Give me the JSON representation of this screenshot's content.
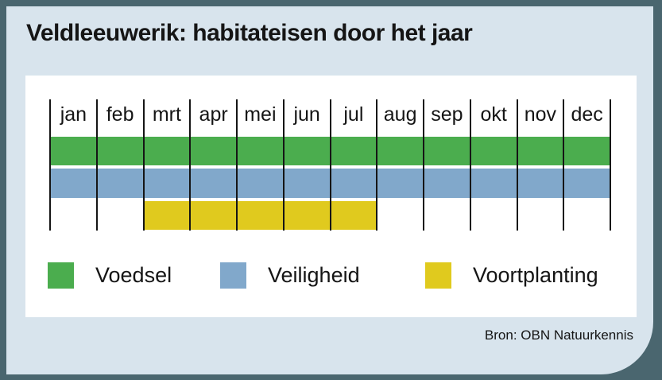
{
  "title": "Veldleeuwerik: habitateisen door het jaar",
  "source": "Bron: OBN Natuurkennis",
  "colors": {
    "frame_background": "#4a666f",
    "card_background": "#d8e4ed",
    "panel_background": "#ffffff",
    "axis_line": "#151515",
    "text": "#151515",
    "green": "#4bad4e",
    "blue": "#81a8cb",
    "yellow": "#e0ca1e"
  },
  "chart_data": {
    "type": "bar",
    "subtype": "month-span-gantt",
    "title": "Veldleeuwerik: habitateisen door het jaar",
    "categories": [
      "jan",
      "feb",
      "mrt",
      "apr",
      "mei",
      "jun",
      "jul",
      "aug",
      "sep",
      "okt",
      "nov",
      "dec"
    ],
    "series": [
      {
        "name": "Voedsel",
        "color": "#4bad4e",
        "start_month": 1,
        "end_month": 12
      },
      {
        "name": "Veiligheid",
        "color": "#81a8cb",
        "start_month": 1,
        "end_month": 12
      },
      {
        "name": "Voortplanting",
        "color": "#e0ca1e",
        "start_month": 3,
        "end_month": 7
      }
    ],
    "legend_position": "bottom",
    "grid": "vertical-month-separators"
  },
  "legend": {
    "items": [
      {
        "label": "Voedsel",
        "color": "#4bad4e"
      },
      {
        "label": "Veiligheid",
        "color": "#81a8cb"
      },
      {
        "label": "Voortplanting",
        "color": "#e0ca1e"
      }
    ]
  }
}
